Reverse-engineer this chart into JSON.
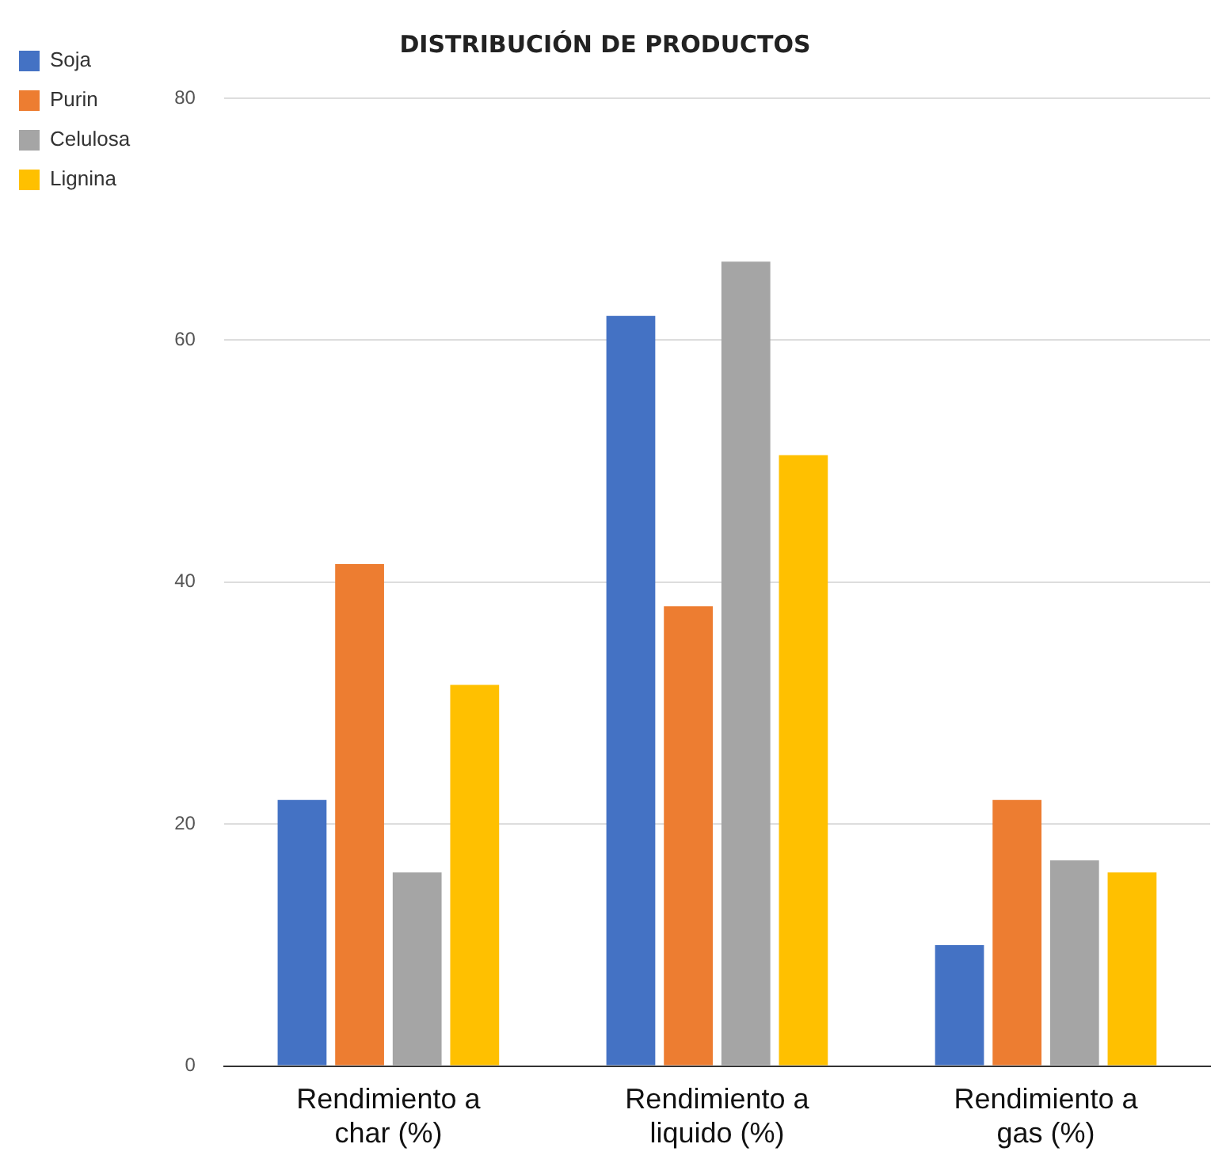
{
  "chart_data": {
    "type": "bar",
    "title": "DISTRIBUCIÓN DE PRODUCTOS",
    "categories": [
      "Rendimiento a char (%)",
      "Rendimiento a liquido (%)",
      "Rendimiento a gas (%)"
    ],
    "series": [
      {
        "name": "Soja",
        "color": "#4472c4",
        "values": [
          22,
          62,
          10
        ]
      },
      {
        "name": "Purin",
        "color": "#ed7d31",
        "values": [
          41.5,
          38,
          22
        ]
      },
      {
        "name": "Celulosa",
        "color": "#a5a5a5",
        "values": [
          16,
          66.5,
          17
        ]
      },
      {
        "name": "Lignina",
        "color": "#ffc000",
        "values": [
          31.5,
          50.5,
          16
        ]
      }
    ],
    "ylim": [
      0,
      80
    ],
    "yticks": [
      0,
      20,
      40,
      60,
      80
    ],
    "grid": "y",
    "legend": "top left"
  }
}
